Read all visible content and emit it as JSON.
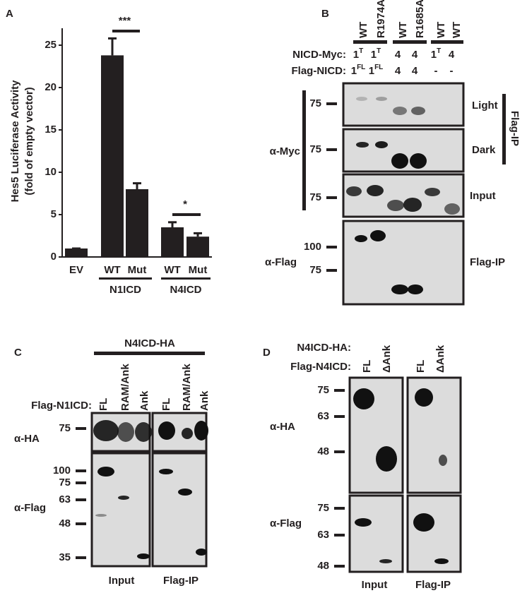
{
  "chart_data": {
    "type": "bar",
    "panel_label": "A",
    "ylabel": "Hes5 Luciferase Activity",
    "ylabel_sub": "(fold of empty vector)",
    "categories": [
      "EV",
      "WT",
      "Mut",
      "WT",
      "Mut"
    ],
    "values": [
      1,
      23.8,
      8,
      3.5,
      2.4
    ],
    "errors": [
      0,
      2,
      0.7,
      0.6,
      0.4
    ],
    "color": "#231f20",
    "ylim": [
      0,
      27
    ],
    "yticks": [
      0,
      5,
      10,
      15,
      20,
      25
    ],
    "groups": [
      "N1ICD",
      "N4ICD"
    ],
    "significance": [
      "***",
      "*"
    ]
  },
  "panel_b": {
    "label": "B",
    "lanes": [
      "WT",
      "R1974A",
      "WT",
      "R1685A",
      "WT",
      "WT"
    ],
    "rows": [
      {
        "name": "NICD-Myc:",
        "cells": [
          [
            "1",
            "T"
          ],
          [
            "1",
            "T"
          ],
          [
            "4"
          ],
          [
            "4"
          ],
          [
            "1",
            "T"
          ],
          [
            "4"
          ]
        ]
      },
      {
        "name": "Flag-NICD:",
        "cells": [
          [
            "1",
            "FL"
          ],
          [
            "1",
            "FL"
          ],
          [
            "4"
          ],
          [
            "4"
          ],
          [
            "-"
          ],
          [
            "-"
          ]
        ]
      }
    ],
    "antibodies": [
      "α-Myc",
      "α-Flag"
    ],
    "markers": [
      "75",
      "75",
      "75",
      "100",
      "75"
    ],
    "side_labels": [
      "Light",
      "Dark",
      "Input",
      "Flag-IP"
    ],
    "bracket_label": "Flag-IP"
  },
  "panel_c": {
    "label": "C",
    "top": "N4ICD-HA",
    "row_label": "Flag-N1ICD:",
    "lanes": [
      "FL",
      "RAM/Ank",
      "Ank",
      "FL",
      "RAM/Ank",
      "Ank"
    ],
    "antibodies": [
      "α-HA",
      "α-Flag"
    ],
    "markers": [
      "75",
      "100",
      "75",
      "63",
      "48",
      "35"
    ],
    "bottom": [
      "Input",
      "Flag-IP"
    ]
  },
  "panel_d": {
    "label": "D",
    "rows": [
      "N4ICD-HA:",
      "Flag-N4ICD:"
    ],
    "lanes": [
      "FL",
      "ΔAnk",
      "FL",
      "ΔAnk"
    ],
    "antibodies": [
      "α-HA",
      "α-Flag"
    ],
    "markers": [
      "75",
      "63",
      "48",
      "75",
      "63",
      "48"
    ],
    "bottom": [
      "Input",
      "Flag-IP"
    ]
  }
}
